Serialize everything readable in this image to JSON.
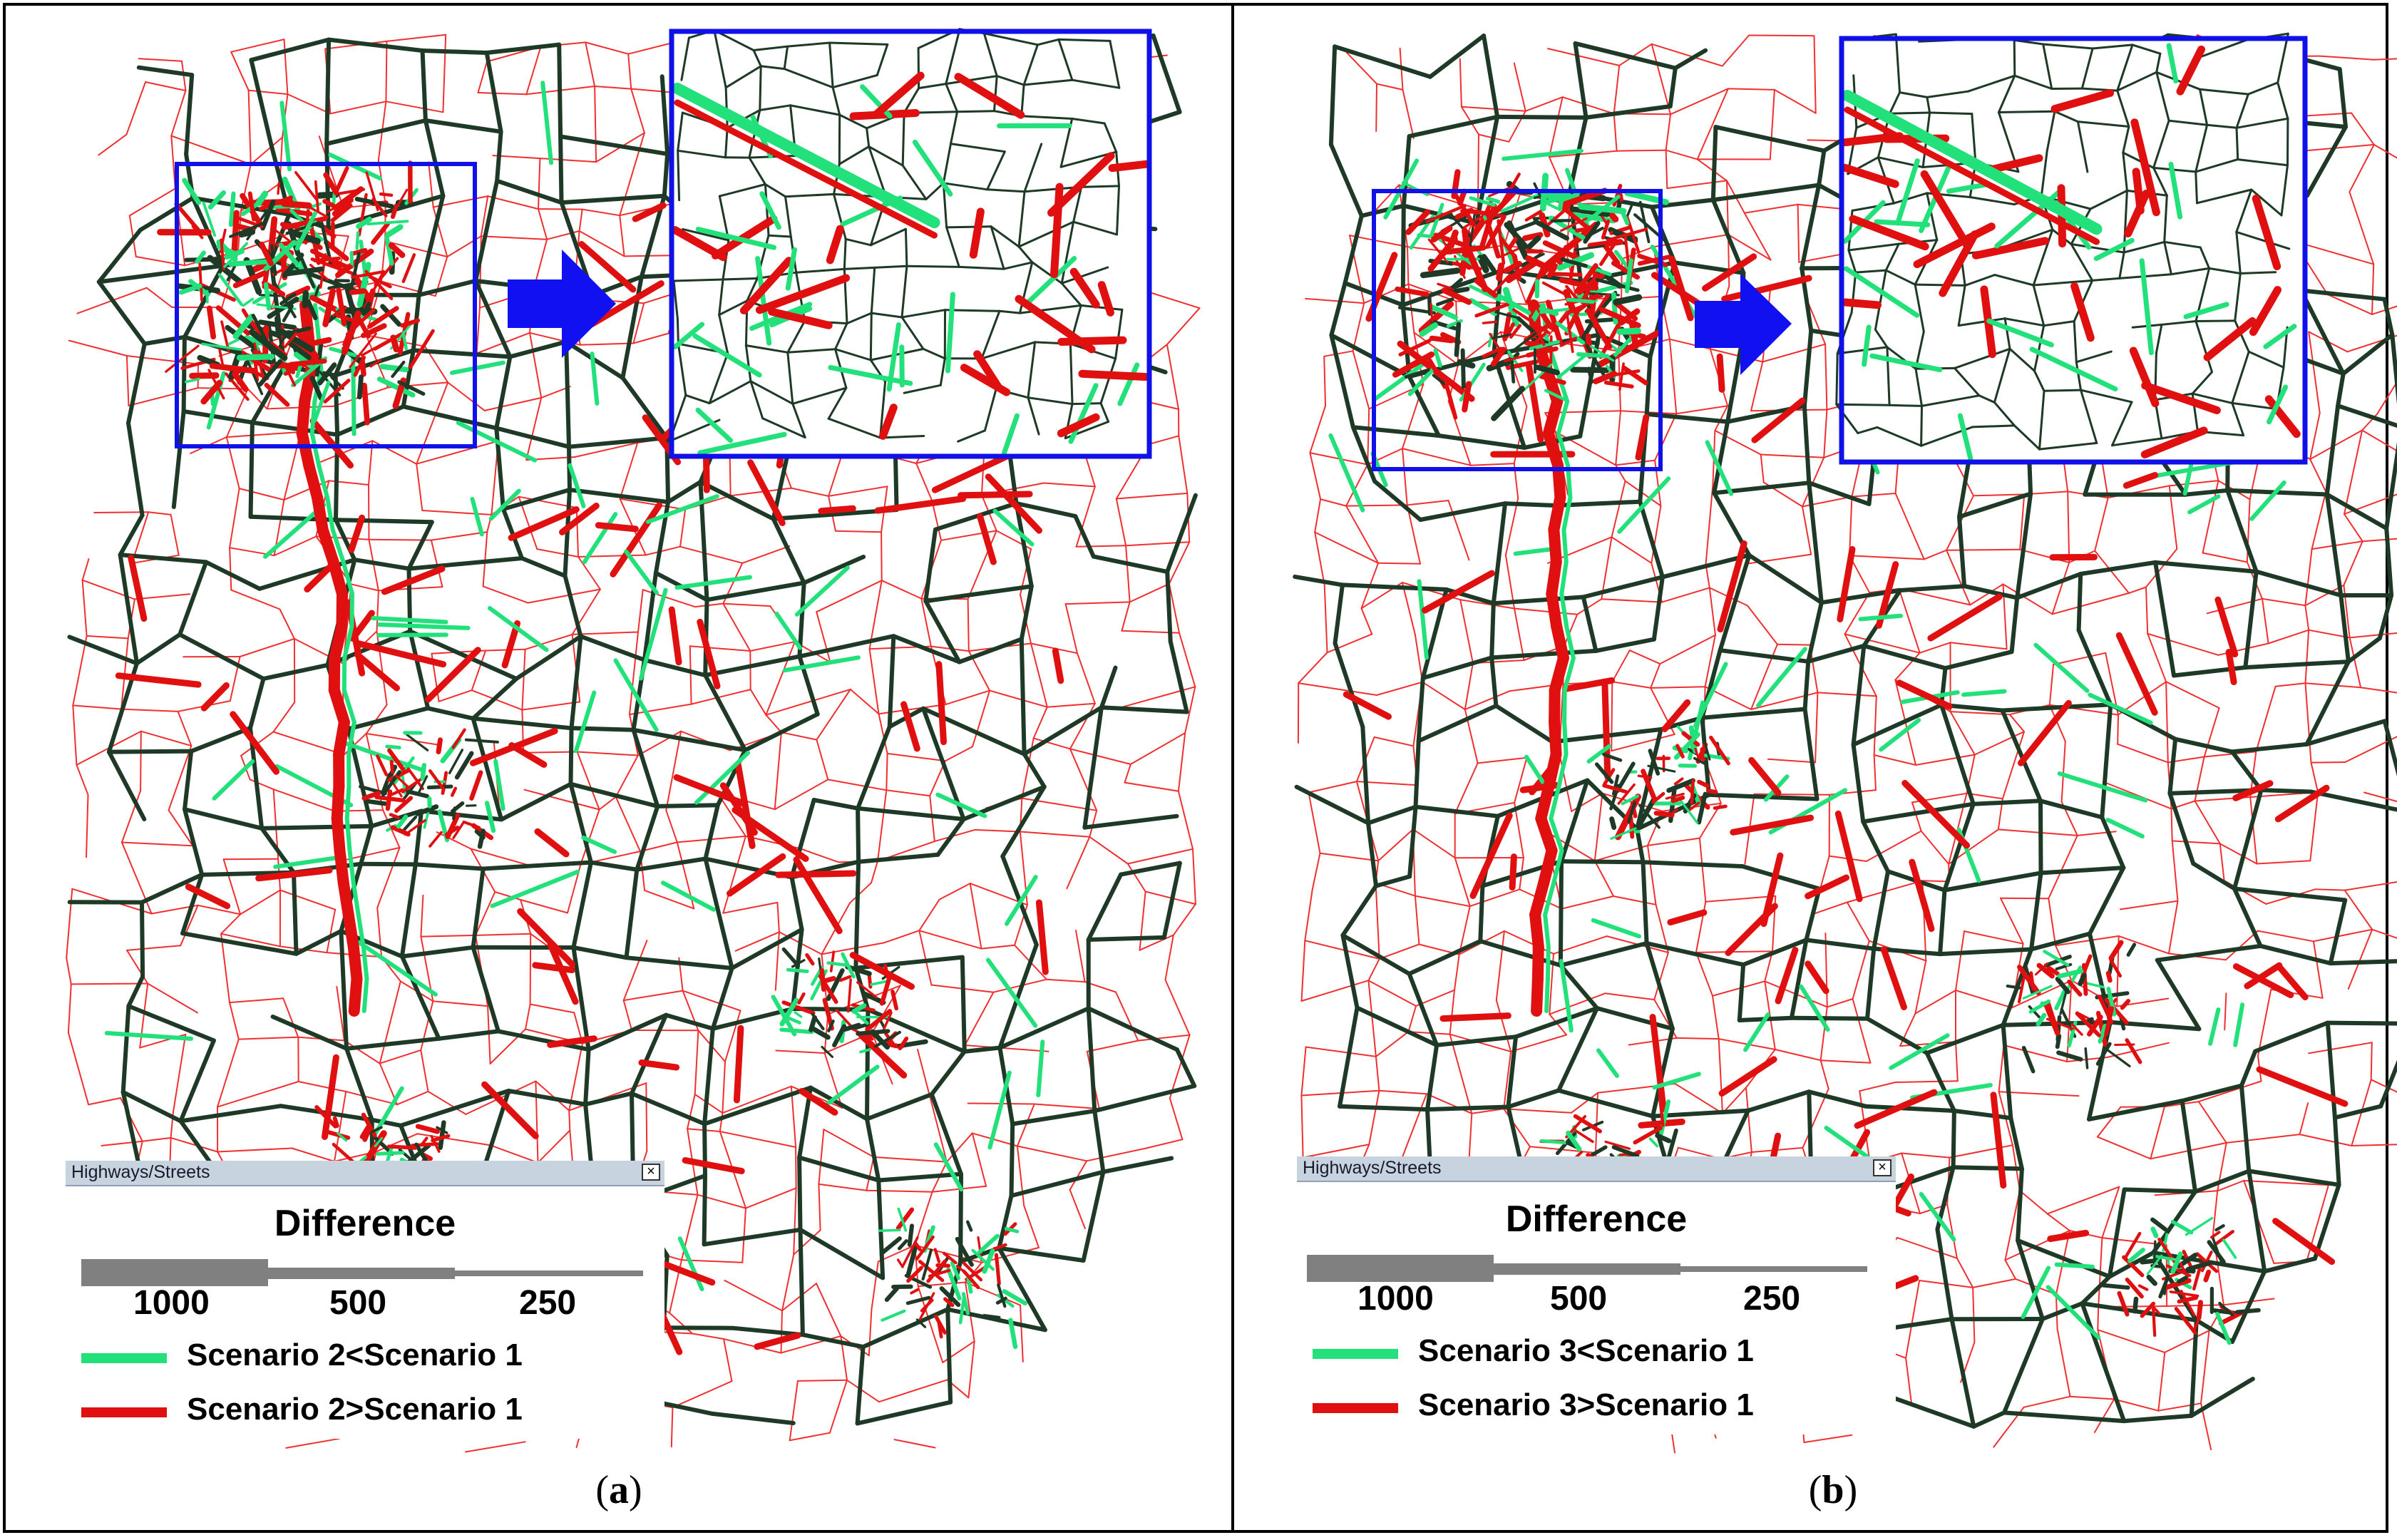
{
  "panels": [
    {
      "id": "a",
      "caption": "a",
      "legend": {
        "window_title": "Highways/Streets",
        "close_glyph": "×",
        "heading": "Difference",
        "width_values": [
          "1000",
          "500",
          "250"
        ],
        "items": [
          {
            "label": "Scenario 2<Scenario 1",
            "color": "#22e07a"
          },
          {
            "label": "Scenario 2>Scenario 1",
            "color": "#e01010"
          }
        ]
      }
    },
    {
      "id": "b",
      "caption": "b",
      "legend": {
        "window_title": "Highways/Streets",
        "close_glyph": "×",
        "heading": "Difference",
        "width_values": [
          "1000",
          "500",
          "250"
        ],
        "items": [
          {
            "label": "Scenario 3<Scenario 1",
            "color": "#22e07a"
          },
          {
            "label": "Scenario 3>Scenario 1",
            "color": "#e01010"
          }
        ]
      }
    }
  ],
  "colors": {
    "highlight_box": "#1010e8",
    "arrow": "#1010f0",
    "base_network": "#1e3a26",
    "minor_roads": "#f03030",
    "increase": "#e01010",
    "decrease": "#22e07a"
  },
  "icons": [
    "zoom-arrow-icon",
    "close-icon"
  ]
}
